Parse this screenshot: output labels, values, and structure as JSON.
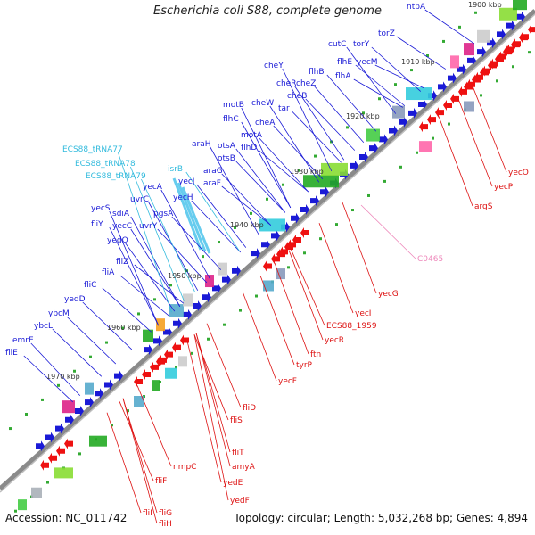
{
  "title": "Escherichia coli S88, complete genome",
  "footer": {
    "accession": "Accession: NC_011742",
    "summary": "Topology: circular; Length: 5,032,268 bp; Genes: 4,894"
  },
  "colors": {
    "forward_label": "#1a1ad6",
    "reverse_label": "#dd1111",
    "rna_label": "#33bbdd",
    "misc_label": "#ee88bb",
    "backbone": "#8a8a8a"
  },
  "ticks": [
    "1900 kbp",
    "1910 kbp",
    "1920 kbp",
    "1930 kbp",
    "1940 kbp",
    "1950 kbp",
    "1960 kbp",
    "1970 kbp"
  ],
  "forward_genes": [
    "ntpA",
    "torZ",
    "cutC",
    "torY",
    "flhE",
    "yecM",
    "flhA",
    "flhB",
    "cheY",
    "cheR",
    "cheZ",
    "cheB",
    "tar",
    "cheW",
    "motB",
    "cheA",
    "motA",
    "flhC",
    "flhD",
    "araH",
    "otsA",
    "otsB",
    "araG",
    "araF",
    "yecJ",
    "yecH",
    "yecA",
    "uvrC",
    "pgsA",
    "sdiA",
    "uvrY",
    "yecS",
    "yecC",
    "fliY",
    "yedO",
    "fliZ",
    "fliA",
    "fliC",
    "yedD",
    "ybcM",
    "ybcL",
    "emrE",
    "fliE"
  ],
  "rna_genes": [
    "ECS88_tRNA77",
    "ECS88_tRNA78",
    "ECS88_tRNA79",
    "isrB"
  ],
  "misc_features": [
    "C0465"
  ],
  "reverse_genes": [
    "yecO",
    "yecP",
    "argS",
    "yecG",
    "yecI",
    "ECS88_1959",
    "yecR",
    "ftn",
    "tyrP",
    "yecF",
    "fliD",
    "fliS",
    "fliT",
    "amyA",
    "nmpC",
    "yedE",
    "yedF",
    "fliF",
    "fliG",
    "fliH",
    "fliI"
  ]
}
